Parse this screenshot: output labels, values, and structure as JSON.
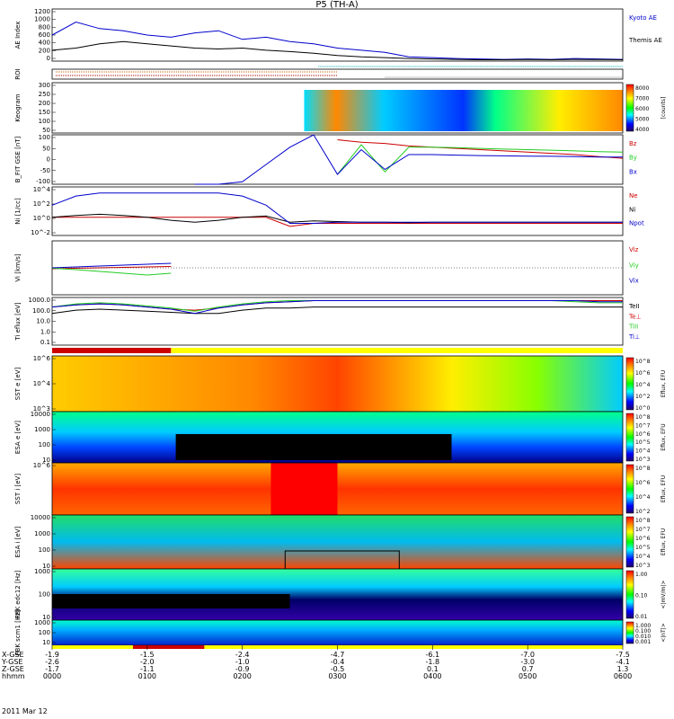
{
  "title": "P5 (TH-A)",
  "date": "2011 Mar 12",
  "row_labels": [
    "X-GSE",
    "Y-GSE",
    "Z-GSE",
    "hhmm"
  ],
  "ticks": [
    {
      "x": "-1.9",
      "y": "-2.6",
      "z": "-1.7",
      "t": "0000"
    },
    {
      "x": "-1.5",
      "y": "-2.0",
      "z": "-1.1",
      "t": "0100"
    },
    {
      "x": "-2.4",
      "y": "-1.0",
      "z": "-0.9",
      "t": "0200"
    },
    {
      "x": "-4.7",
      "y": "-0.4",
      "z": "-0.5",
      "t": "0300"
    },
    {
      "x": "-6.1",
      "y": "-1.8",
      "z": "0.1",
      "t": "0400"
    },
    {
      "x": "-7.0",
      "y": "-3.0",
      "z": "0.7",
      "t": "0500"
    },
    {
      "x": "-7.5",
      "y": "-4.1",
      "z": "1.3",
      "t": "0600"
    }
  ],
  "colors": {
    "blue": "#0000cc",
    "red": "#cc0000",
    "green": "#22cc22",
    "black": "#000000",
    "yellow": "#ffff00"
  },
  "chart_data": [
    {
      "id": "ae",
      "type": "line",
      "ylabel": "AE Index",
      "yticks": [
        "1200",
        "1000",
        "800",
        "600",
        "400",
        "200",
        "0"
      ],
      "ylim": [
        0,
        1200
      ],
      "x": [
        0,
        0.25,
        0.5,
        0.75,
        1,
        1.25,
        1.5,
        1.75,
        2,
        2.25,
        2.5,
        2.75,
        3,
        3.25,
        3.5,
        3.75,
        4,
        4.25,
        4.5,
        4.75,
        5,
        5.25,
        5.5,
        5.75,
        6
      ],
      "series": [
        {
          "name": "Kyoto AE",
          "color": "#0000cc",
          "values": [
            600,
            900,
            750,
            700,
            600,
            550,
            650,
            700,
            500,
            550,
            450,
            400,
            300,
            250,
            200,
            100,
            80,
            60,
            50,
            40,
            50,
            40,
            60,
            50,
            40
          ]
        },
        {
          "name": "Themis AE",
          "color": "#000000",
          "values": [
            250,
            300,
            400,
            450,
            400,
            350,
            300,
            280,
            300,
            250,
            220,
            180,
            130,
            100,
            80,
            60,
            50,
            40,
            30,
            30,
            35,
            30,
            40,
            35,
            30
          ]
        }
      ]
    },
    {
      "id": "roi",
      "type": "line",
      "ylabel": "ROI",
      "yticks": [],
      "ylim": [
        0,
        1
      ],
      "x": [
        0,
        6
      ],
      "series": []
    },
    {
      "id": "keogram",
      "type": "heatmap",
      "ylabel": "Keogram",
      "yticks": [
        "300",
        "250",
        "200",
        "150",
        "100",
        "50"
      ],
      "ylim": [
        30,
        300
      ],
      "colorbar": {
        "label": "[counts]",
        "ticks": [
          "8000",
          "7000",
          "6000",
          "5000",
          "4000"
        ]
      }
    },
    {
      "id": "bfit",
      "type": "line",
      "ylabel": "B_FIT GSE [nT]",
      "yticks": [
        "100",
        "50",
        "0",
        "-50",
        "-100"
      ],
      "ylim": [
        -100,
        100
      ],
      "x": [
        1.5,
        1.75,
        2,
        2.25,
        2.5,
        2.75,
        3,
        3.25,
        3.5,
        3.75,
        4,
        4.25,
        4.5,
        4.75,
        5,
        5.25,
        5.5,
        5.75,
        6
      ],
      "series": [
        {
          "name": "Bz",
          "color": "#cc0000",
          "values": [
            null,
            null,
            null,
            null,
            null,
            null,
            80,
            70,
            65,
            55,
            50,
            45,
            40,
            35,
            30,
            25,
            20,
            12,
            5
          ]
        },
        {
          "name": "By",
          "color": "#22cc22",
          "values": [
            null,
            null,
            null,
            null,
            null,
            null,
            -60,
            60,
            -50,
            50,
            50,
            48,
            45,
            42,
            40,
            38,
            35,
            32,
            30
          ]
        },
        {
          "name": "Bx",
          "color": "#0000cc",
          "values": [
            -100,
            -100,
            -90,
            -20,
            50,
            100,
            -60,
            40,
            -40,
            20,
            20,
            18,
            16,
            15,
            14,
            13,
            12,
            10,
            10
          ]
        }
      ]
    },
    {
      "id": "ni",
      "type": "line",
      "ylabel": "Ni [1/cc]",
      "yticks": [
        "10^4",
        "10^2",
        "10^0",
        "10^-2"
      ],
      "ylim": [
        -3,
        5
      ],
      "x": [
        0,
        0.25,
        0.5,
        0.75,
        1,
        1.25,
        1.5,
        1.75,
        2,
        2.25,
        2.5,
        2.75,
        3,
        3.25,
        3.5,
        3.75,
        4,
        4.25,
        4.5,
        4.75,
        5,
        5.25,
        5.5,
        5.75,
        6
      ],
      "series": [
        {
          "name": "Ne",
          "color": "#cc0000",
          "values": [
            0,
            0,
            0,
            0,
            0,
            0,
            0,
            0,
            0,
            0,
            -1.5,
            -1,
            -1,
            -1,
            -1,
            -1,
            -1,
            -1,
            -1,
            -1,
            -1,
            -1,
            -1,
            -1,
            -1
          ]
        },
        {
          "name": "Ni",
          "color": "#000000",
          "values": [
            0,
            0.3,
            0.5,
            0.3,
            0,
            -0.5,
            -0.8,
            -0.5,
            0,
            0.2,
            -0.8,
            -0.6,
            -0.7,
            -0.8,
            -0.8,
            -0.9,
            -0.8,
            -0.8,
            -0.8,
            -0.8,
            -0.8,
            -0.8,
            -0.8,
            -0.8,
            -0.8
          ]
        },
        {
          "name": "Npot",
          "color": "#0000cc",
          "values": [
            2,
            3.5,
            4,
            4,
            4,
            4,
            4,
            4,
            3.5,
            2,
            -1,
            -1,
            -0.8,
            -0.8,
            -0.8,
            -0.8,
            -0.8,
            -0.8,
            -0.8,
            -0.8,
            -0.8,
            -0.8,
            -0.8,
            -0.8,
            -0.8
          ]
        }
      ]
    },
    {
      "id": "vi",
      "type": "line",
      "ylabel": "Vi [km/s]",
      "yticks": [],
      "ylim": [
        -300,
        300
      ],
      "x": [
        0,
        0.25,
        0.5,
        0.75,
        1,
        1.25
      ],
      "series": [
        {
          "name": "Viz",
          "color": "#cc0000",
          "values": [
            -10,
            -5,
            0,
            5,
            10,
            15
          ]
        },
        {
          "name": "Viy",
          "color": "#22cc22",
          "values": [
            -5,
            -20,
            -40,
            -60,
            -80,
            -60
          ]
        },
        {
          "name": "Vix",
          "color": "#0000cc",
          "values": [
            0,
            10,
            20,
            30,
            40,
            50
          ]
        }
      ]
    },
    {
      "id": "ti",
      "type": "line",
      "ylabel": "Ti eflux [eV]",
      "yticks": [
        "1000.0",
        "100.0",
        "10.0",
        "1.0",
        "0.1"
      ],
      "ylim": [
        -1,
        3.5
      ],
      "x": [
        0,
        0.25,
        0.5,
        0.75,
        1,
        1.25,
        1.5,
        1.75,
        2,
        2.25,
        2.5,
        2.75,
        3,
        3.25,
        3.5,
        3.75,
        4,
        4.25,
        4.5,
        4.75,
        5,
        5.25,
        5.5,
        5.75,
        6
      ],
      "series": [
        {
          "name": "TeII",
          "color": "#000000",
          "values": [
            2,
            2.3,
            2.4,
            2.3,
            2.2,
            2.1,
            2,
            2,
            2.3,
            2.5,
            2.5,
            2.6,
            2.6,
            2.6,
            2.6,
            2.6,
            2.6,
            2.6,
            2.6,
            2.6,
            2.6,
            2.6,
            2.6,
            2.6,
            2.6
          ]
        },
        {
          "name": "Te⊥",
          "color": "#cc0000",
          "values": [
            2.6,
            2.8,
            2.9,
            2.8,
            2.6,
            2.4,
            2.3,
            2.5,
            2.8,
            3,
            3.1,
            3.2,
            3.2,
            3.2,
            3.2,
            3.2,
            3.2,
            3.2,
            3.2,
            3.2,
            3.2,
            3.2,
            3.2,
            3.2,
            3.2
          ]
        },
        {
          "name": "TiII",
          "color": "#22cc22",
          "values": [
            2.6,
            2.9,
            3,
            2.9,
            2.7,
            2.5,
            2.2,
            2.6,
            2.9,
            3.1,
            3.2,
            3.2,
            3.2,
            3.2,
            3.2,
            3.2,
            3.2,
            3.2,
            3.2,
            3.2,
            3.2,
            3.2,
            3.1,
            3,
            3
          ]
        },
        {
          "name": "Ti⊥",
          "color": "#0000cc",
          "values": [
            2.6,
            2.8,
            2.9,
            2.8,
            2.6,
            2.4,
            2.0,
            2.5,
            2.8,
            3,
            3.1,
            3.2,
            3.2,
            3.2,
            3.2,
            3.2,
            3.2,
            3.2,
            3.2,
            3.2,
            3.2,
            3.2,
            3.2,
            3.1,
            3.1
          ]
        }
      ]
    },
    {
      "id": "sst_e",
      "type": "heatmap",
      "ylabel": "SST e [eV]",
      "yticks": [
        "10^6",
        "10^4",
        "10^3"
      ],
      "colorbar": {
        "label": "Eflux, EFU",
        "ticks": [
          "10^8",
          "10^6",
          "10^4",
          "10^2",
          "10^0"
        ]
      }
    },
    {
      "id": "esa_e",
      "type": "heatmap",
      "ylabel": "ESA e [eV]",
      "yticks": [
        "10000",
        "1000",
        "100",
        "10"
      ],
      "colorbar": {
        "label": "Eflux, EFU",
        "ticks": [
          "10^8",
          "10^7",
          "10^6",
          "10^5",
          "10^4",
          "10^3"
        ]
      }
    },
    {
      "id": "sst_i",
      "type": "heatmap",
      "ylabel": "SST i [eV]",
      "yticks": [
        "10^6"
      ],
      "colorbar": {
        "label": "Eflux, EFU",
        "ticks": [
          "10^8",
          "10^6",
          "10^4",
          "10^2"
        ]
      }
    },
    {
      "id": "esa_i",
      "type": "heatmap",
      "ylabel": "ESA i [eV]",
      "yticks": [
        "10000",
        "1000",
        "100",
        "10"
      ],
      "colorbar": {
        "label": "Eflux, EFU",
        "ticks": [
          "10^8",
          "10^7",
          "10^6",
          "10^5",
          "10^4",
          "10^3"
        ]
      }
    },
    {
      "id": "fbk_e",
      "type": "heatmap",
      "ylabel": "FBK edc12 [Hz]",
      "yticks": [
        "1000",
        "100",
        "10"
      ],
      "colorbar": {
        "label": "<|mV/m|>",
        "ticks": [
          "1.00",
          "0.10",
          "0.01"
        ]
      }
    },
    {
      "id": "fbk_b",
      "type": "heatmap",
      "ylabel": "FBK scm1 [Hz]",
      "yticks": [
        "1000",
        "100",
        "10"
      ],
      "colorbar": {
        "label": "<|nT|>",
        "ticks": [
          "1.000",
          "0.100",
          "0.010",
          "0.001"
        ]
      }
    }
  ]
}
